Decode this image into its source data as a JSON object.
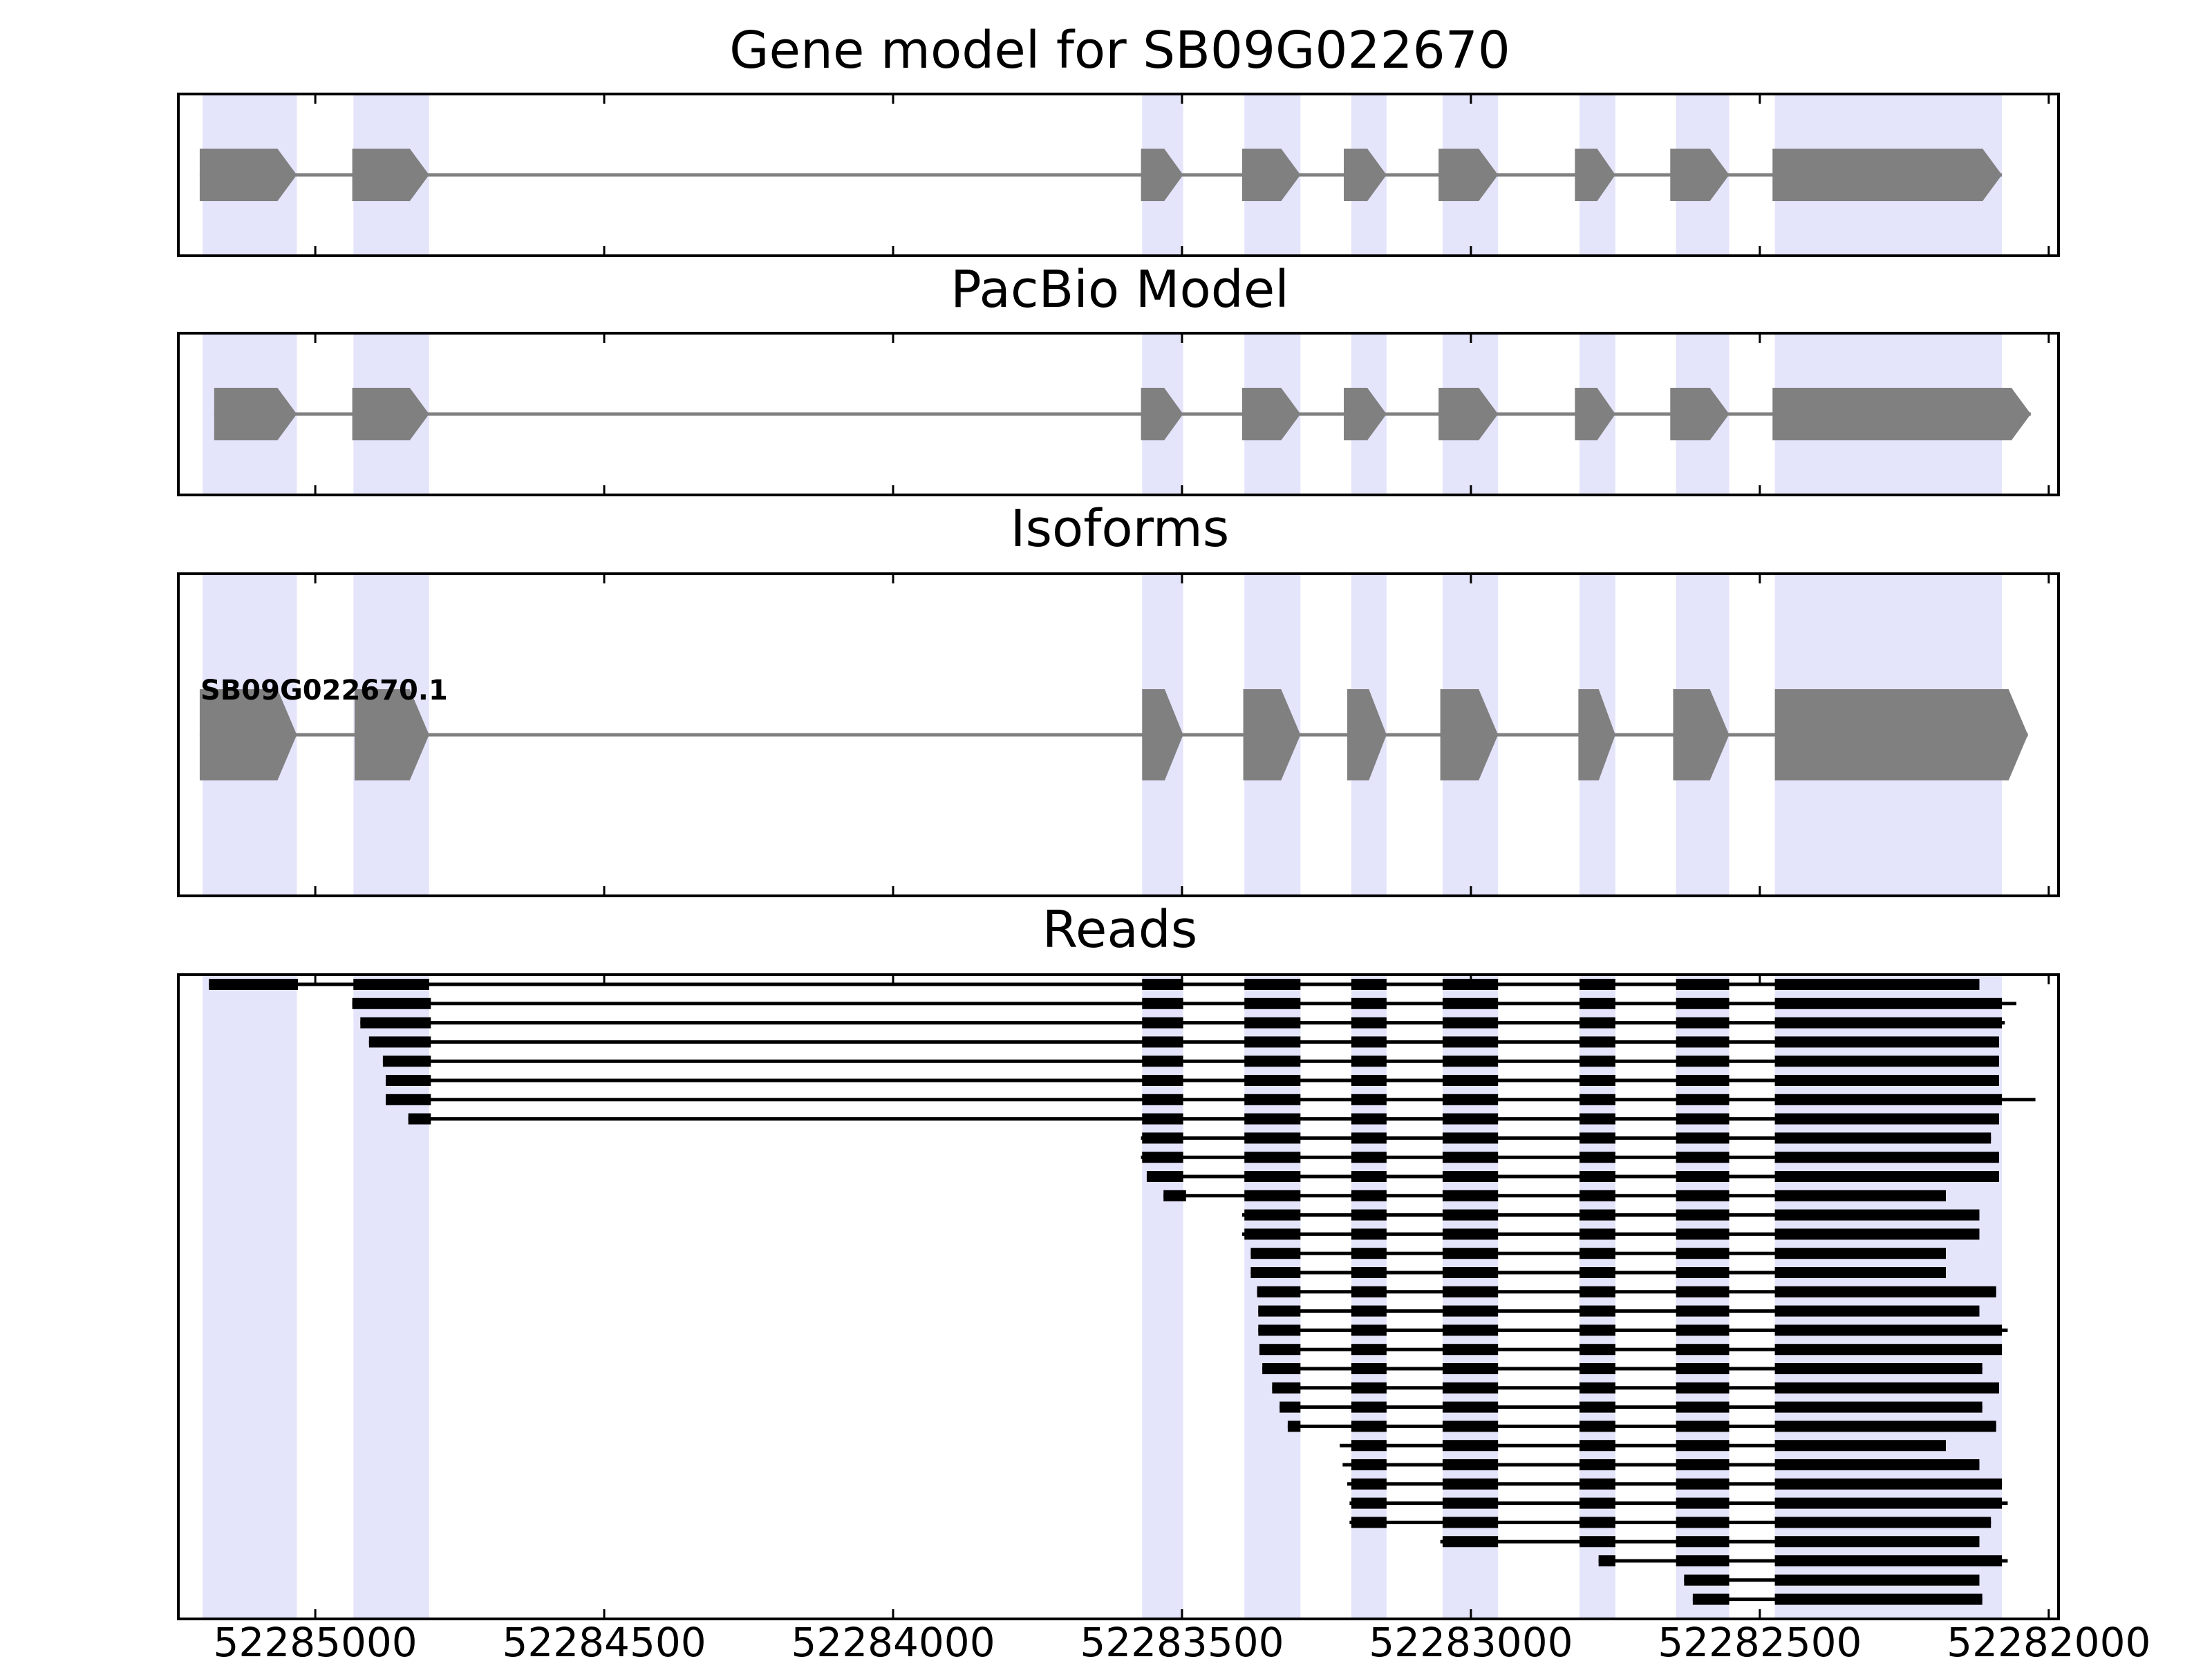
{
  "figure": {
    "panels": [
      {
        "key": "gene_model",
        "title": "Gene model for SB09G022670"
      },
      {
        "key": "pacbio",
        "title": "PacBio Model"
      },
      {
        "key": "isoforms",
        "title": "Isoforms"
      },
      {
        "key": "reads",
        "title": "Reads"
      }
    ]
  },
  "chart_data": {
    "type": "gene_structure",
    "x_axis": {
      "reversed": true,
      "lim": [
        52285237,
        52281983
      ],
      "ticks": [
        52285000,
        52284500,
        52284000,
        52283500,
        52283000,
        52282500,
        52282000
      ],
      "tick_labels": [
        "52285000",
        "52284500",
        "52284000",
        "52283500",
        "52283000",
        "52282500",
        "52282000"
      ]
    },
    "colors": {
      "exon_shade": "#e4e4fb",
      "model_exon": "#808080",
      "model_intron": "#808080",
      "read": "#000000",
      "frame": "#000000"
    },
    "shaded_exons": [
      [
        52285195,
        52285032
      ],
      [
        52284934,
        52284803
      ],
      [
        52283569,
        52283498
      ],
      [
        52283392,
        52283295
      ],
      [
        52283207,
        52283146
      ],
      [
        52283049,
        52282953
      ],
      [
        52282812,
        52282750
      ],
      [
        52282645,
        52282553
      ],
      [
        52282474,
        52282081
      ]
    ],
    "gene_model": {
      "strand": "-",
      "exons": [
        [
          52285200,
          52285032
        ],
        [
          52284936,
          52284803
        ],
        [
          52283571,
          52283498
        ],
        [
          52283396,
          52283295
        ],
        [
          52283220,
          52283146
        ],
        [
          52283056,
          52282953
        ],
        [
          52282820,
          52282750
        ],
        [
          52282655,
          52282553
        ],
        [
          52282478,
          52282081
        ]
      ]
    },
    "pacbio_model": {
      "strand": "-",
      "exons": [
        [
          52285175,
          52285032
        ],
        [
          52284936,
          52284803
        ],
        [
          52283571,
          52283498
        ],
        [
          52283396,
          52283295
        ],
        [
          52283220,
          52283146
        ],
        [
          52283056,
          52282953
        ],
        [
          52282820,
          52282750
        ],
        [
          52282655,
          52282553
        ],
        [
          52282478,
          52282031
        ]
      ]
    },
    "isoforms": [
      {
        "name": "SB09G022670.1",
        "strand": "-",
        "exons": [
          [
            52285200,
            52285032
          ],
          [
            52284932,
            52284803
          ],
          [
            52283569,
            52283498
          ],
          [
            52283394,
            52283295
          ],
          [
            52283214,
            52283146
          ],
          [
            52283053,
            52282953
          ],
          [
            52282814,
            52282750
          ],
          [
            52282650,
            52282553
          ],
          [
            52282474,
            52282036
          ]
        ]
      }
    ],
    "reads": [
      {
        "start": 52285184,
        "end": 52282120,
        "first_exon_end": 52285030
      },
      {
        "start": 52284936,
        "end": 52282056,
        "first_exon_end": 52284800
      },
      {
        "start": 52284922,
        "end": 52282076,
        "first_exon_end": 52284800
      },
      {
        "start": 52284907,
        "end": 52282086,
        "first_exon_end": 52284800
      },
      {
        "start": 52284883,
        "end": 52282086,
        "first_exon_end": 52284800
      },
      {
        "start": 52284878,
        "end": 52282086,
        "first_exon_end": 52284800
      },
      {
        "start": 52284878,
        "end": 52282023,
        "first_exon_end": 52284800
      },
      {
        "start": 52284839,
        "end": 52282086,
        "first_exon_end": 52284800
      },
      {
        "start": 52283571,
        "end": 52282100,
        "first_exon_end": null
      },
      {
        "start": 52283571,
        "end": 52282086,
        "first_exon_end": null
      },
      {
        "start": 52283561,
        "end": 52282086,
        "first_exon_end": null
      },
      {
        "start": 52283532,
        "end": 52282178,
        "first_exon_end": 52283493
      },
      {
        "start": 52283396,
        "end": 52282120,
        "first_exon_end": null
      },
      {
        "start": 52283396,
        "end": 52282120,
        "first_exon_end": null
      },
      {
        "start": 52283381,
        "end": 52282178,
        "first_exon_end": null
      },
      {
        "start": 52283381,
        "end": 52282178,
        "first_exon_end": null
      },
      {
        "start": 52283370,
        "end": 52282091,
        "first_exon_end": null
      },
      {
        "start": 52283368,
        "end": 52282120,
        "first_exon_end": null
      },
      {
        "start": 52283368,
        "end": 52282071,
        "first_exon_end": null
      },
      {
        "start": 52283366,
        "end": 52282081,
        "first_exon_end": null
      },
      {
        "start": 52283361,
        "end": 52282115,
        "first_exon_end": null
      },
      {
        "start": 52283344,
        "end": 52282086,
        "first_exon_end": null
      },
      {
        "start": 52283331,
        "end": 52282115,
        "first_exon_end": null
      },
      {
        "start": 52283317,
        "end": 52282091,
        "first_exon_end": 52283295
      },
      {
        "start": 52283227,
        "end": 52282178,
        "first_exon_end": null
      },
      {
        "start": 52283222,
        "end": 52282120,
        "first_exon_end": null
      },
      {
        "start": 52283214,
        "end": 52282081,
        "first_exon_end": null
      },
      {
        "start": 52283210,
        "end": 52282071,
        "first_exon_end": null
      },
      {
        "start": 52283210,
        "end": 52282100,
        "first_exon_end": null
      },
      {
        "start": 52283053,
        "end": 52282120,
        "first_exon_end": null
      },
      {
        "start": 52282779,
        "end": 52282071,
        "first_exon_end": 52282750
      },
      {
        "start": 52282631,
        "end": 52282120,
        "first_exon_end": null
      },
      {
        "start": 52282616,
        "end": 52282115,
        "first_exon_end": null
      }
    ]
  }
}
